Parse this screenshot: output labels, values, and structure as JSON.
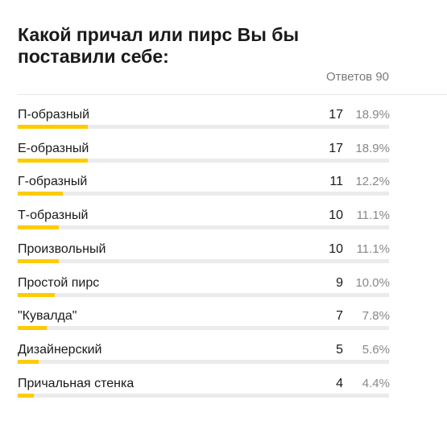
{
  "poll": {
    "question": "Какой причал или пирс Вы бы поставили себе:",
    "total_label": "Ответов 90"
  },
  "chart_data": {
    "type": "bar",
    "orientation": "horizontal",
    "title": "Какой причал или пирс Вы бы поставили себе:",
    "total_label": "Ответов 90",
    "categories": [
      "П-образный",
      "Е-образный",
      "Г-образный",
      "Т-образный",
      "Произвольный",
      "Простой пирс",
      "\"Кувалда\"",
      "Дизайнерский",
      "Причальная стенка"
    ],
    "values": [
      17,
      17,
      11,
      10,
      10,
      9,
      7,
      5,
      4
    ],
    "percents": [
      "18.9%",
      "18.9%",
      "12.2%",
      "11.1%",
      "11.1%",
      "10.0%",
      "7.8%",
      "5.6%",
      "4.4%"
    ],
    "xlim": [
      0,
      90
    ],
    "bar_color": "#fdcc00",
    "track_color": "#ebebeb"
  }
}
